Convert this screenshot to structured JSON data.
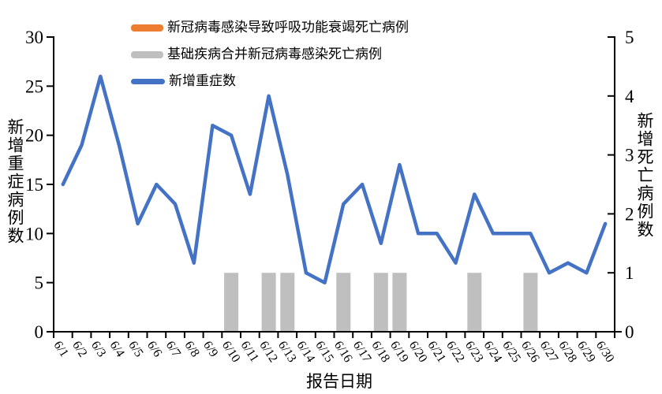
{
  "chart_data": {
    "type": "combo-line-bar",
    "categories": [
      "6/1",
      "6/2",
      "6/3",
      "6/4",
      "6/5",
      "6/6",
      "6/7",
      "6/8",
      "6/9",
      "6/10",
      "6/11",
      "6/12",
      "6/13",
      "6/14",
      "6/15",
      "6/16",
      "6/17",
      "6/18",
      "6/19",
      "6/20",
      "6/21",
      "6/22",
      "6/23",
      "6/24",
      "6/25",
      "6/26",
      "6/27",
      "6/28",
      "6/29",
      "6/30"
    ],
    "series": [
      {
        "name": "新冠病毒感染导致呼吸功能衰竭死亡病例",
        "type": "bar",
        "axis": "right",
        "color": "#ED7D31",
        "values": [
          0,
          0,
          0,
          0,
          0,
          0,
          0,
          0,
          0,
          0,
          0,
          0,
          0,
          0,
          0,
          0,
          0,
          0,
          0,
          0,
          0,
          0,
          0,
          0,
          0,
          0,
          0,
          0,
          0,
          0
        ]
      },
      {
        "name": "基础疾病合并新冠病毒感染死亡病例",
        "type": "bar",
        "axis": "right",
        "color": "#BFBFBF",
        "values": [
          0,
          0,
          0,
          0,
          0,
          0,
          0,
          0,
          0,
          1,
          0,
          1,
          1,
          0,
          0,
          1,
          0,
          1,
          1,
          0,
          0,
          0,
          1,
          0,
          0,
          1,
          0,
          0,
          0,
          0
        ]
      },
      {
        "name": "新增重症数",
        "type": "line",
        "axis": "left",
        "color": "#4472C4",
        "values": [
          15,
          19,
          26,
          19,
          11,
          15,
          13,
          7,
          21,
          20,
          14,
          24,
          16,
          6,
          5,
          13,
          15,
          9,
          17,
          10,
          10,
          7,
          14,
          10,
          10,
          10,
          6,
          7,
          6,
          11
        ]
      }
    ],
    "title": "",
    "xlabel": "报告日期",
    "ylabel_left": "新增重症病例数",
    "ylabel_right": "新增死亡病例数",
    "ylim_left": [
      0,
      30
    ],
    "ylim_right": [
      0,
      5
    ],
    "yticks_left": [
      0,
      5,
      10,
      15,
      20,
      25,
      30
    ],
    "yticks_right": [
      0,
      1,
      2,
      3,
      4,
      5
    ],
    "grid": false,
    "legend_position": "top",
    "axis_color": "#000000"
  }
}
